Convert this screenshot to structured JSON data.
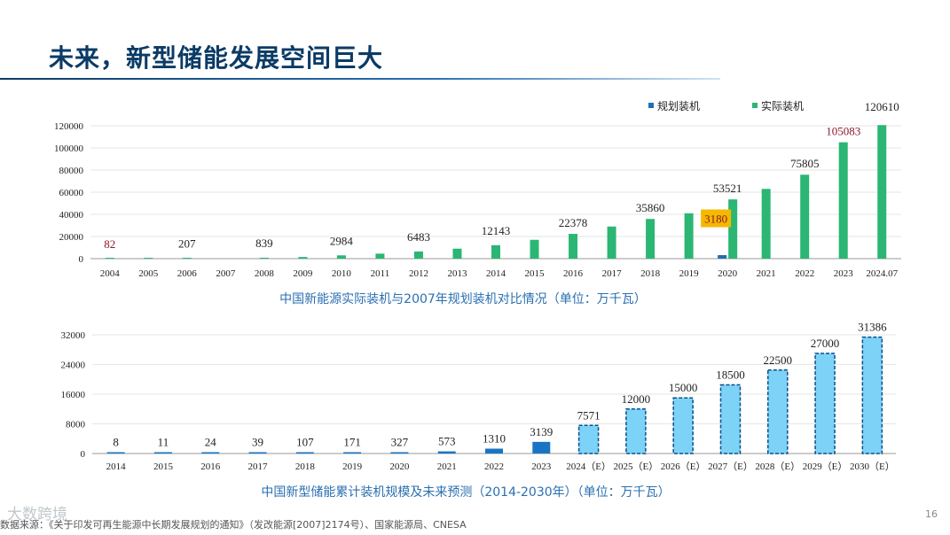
{
  "page": {
    "title": "未来，新型储能发展空间巨大",
    "source": "数据来源：《关于印发可再生能源中长期发展规划的通知》（发改能源[2007]2174号）、国家能源局、CNESA",
    "page_number": "16",
    "watermark": "大数跨境"
  },
  "colors": {
    "title": "#0b3b66",
    "planned": "#1f6fb2",
    "actual": "#2bb673",
    "storage_actual": "#1a74c4",
    "storage_forecast": "#7dd3f7",
    "caption": "#2a6fb0",
    "highlight_text": "#8b1a2b",
    "label_box": "#f5b800"
  },
  "chart_data": [
    {
      "type": "bar",
      "caption": "中国新能源实际装机与2007年规划装机对比情况（单位：万千瓦）",
      "categories": [
        "2004",
        "2005",
        "2006",
        "2007",
        "2008",
        "2009",
        "2010",
        "2011",
        "2012",
        "2013",
        "2014",
        "2015",
        "2016",
        "2017",
        "2018",
        "2019",
        "2020",
        "2021",
        "2022",
        "2023",
        "2024.07"
      ],
      "series": [
        {
          "name": "规划装机",
          "values": [
            null,
            null,
            null,
            null,
            null,
            null,
            null,
            null,
            null,
            null,
            null,
            null,
            null,
            null,
            null,
            null,
            3180,
            null,
            null,
            null,
            null
          ]
        },
        {
          "name": "实际装机",
          "values": [
            82,
            207,
            207,
            null,
            839,
            1500,
            2984,
            4500,
            6483,
            9000,
            12143,
            17000,
            22378,
            29000,
            35860,
            41000,
            53521,
            63000,
            75805,
            105083,
            120610
          ]
        }
      ],
      "data_labels": [
        {
          "category": "2004",
          "text": "82",
          "style": "highlight"
        },
        {
          "category": "2006",
          "text": "207"
        },
        {
          "category": "2008",
          "text": "839"
        },
        {
          "category": "2010",
          "text": "2984"
        },
        {
          "category": "2012",
          "text": "6483"
        },
        {
          "category": "2014",
          "text": "12143"
        },
        {
          "category": "2016",
          "text": "22378"
        },
        {
          "category": "2018",
          "text": "35860"
        },
        {
          "category": "2020",
          "text": "53521"
        },
        {
          "category": "2020",
          "text": "3180",
          "style": "boxed"
        },
        {
          "category": "2022",
          "text": "75805"
        },
        {
          "category": "2023",
          "text": "105083",
          "style": "highlight"
        },
        {
          "category": "2024.07",
          "text": "120610"
        }
      ],
      "yticks": [
        "0",
        "20000",
        "40000",
        "60000",
        "80000",
        "100000",
        "120000"
      ],
      "ylim": [
        0,
        120000
      ]
    },
    {
      "type": "bar",
      "caption": "中国新型储能累计装机规模及未来预测（2014-2030年）（单位：万千瓦）",
      "categories": [
        "2014",
        "2015",
        "2016",
        "2017",
        "2018",
        "2019",
        "2020",
        "2021",
        "2022",
        "2023",
        "2024（E）",
        "2025（E）",
        "2026（E）",
        "2027（E）",
        "2028（E）",
        "2029（E）",
        "2030（E）"
      ],
      "values": [
        8,
        11,
        24,
        39,
        107,
        171,
        327,
        573,
        1310,
        3139,
        7571,
        12000,
        15000,
        18500,
        22500,
        27000,
        31386
      ],
      "labels": [
        "8",
        "11",
        "24",
        "39",
        "107",
        "171",
        "327",
        "573",
        "1310",
        "3139",
        "7571",
        "12000",
        "15000",
        "18500",
        "22500",
        "27000",
        "31386"
      ],
      "forecast_from_index": 10,
      "yticks": [
        "0",
        "8000",
        "16000",
        "24000",
        "32000"
      ],
      "ylim": [
        0,
        32000
      ]
    }
  ]
}
